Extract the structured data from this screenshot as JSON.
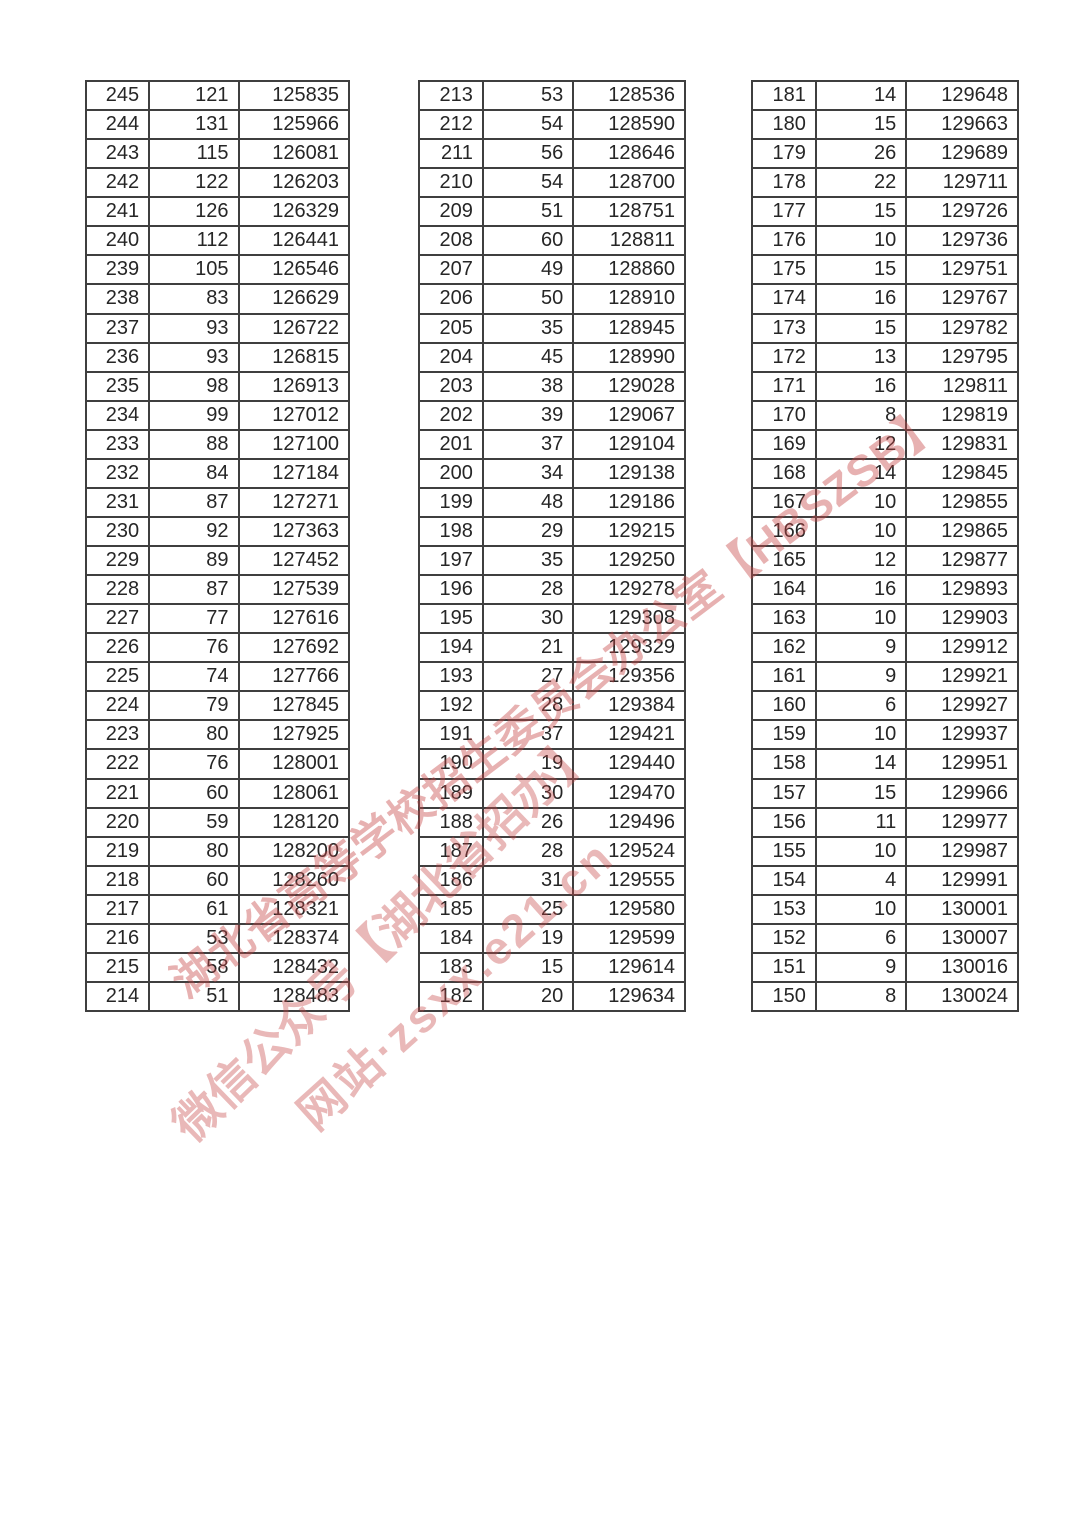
{
  "page": {
    "background": "#ffffff",
    "border_color": "#3f3f3f",
    "text_color": "#262626"
  },
  "watermark": {
    "color": "#c64444",
    "lines": [
      {
        "text": "湖北省高等学校招生委员会办公室【HBSZSB】"
      },
      {
        "text": "微信公众号【湖北省招办】"
      },
      {
        "text": "网站·zsxx.e21.cn"
      }
    ]
  },
  "tables": [
    {
      "rows": [
        [
          245,
          121,
          125835
        ],
        [
          244,
          131,
          125966
        ],
        [
          243,
          115,
          126081
        ],
        [
          242,
          122,
          126203
        ],
        [
          241,
          126,
          126329
        ],
        [
          240,
          112,
          126441
        ],
        [
          239,
          105,
          126546
        ],
        [
          238,
          83,
          126629
        ],
        [
          237,
          93,
          126722
        ],
        [
          236,
          93,
          126815
        ],
        [
          235,
          98,
          126913
        ],
        [
          234,
          99,
          127012
        ],
        [
          233,
          88,
          127100
        ],
        [
          232,
          84,
          127184
        ],
        [
          231,
          87,
          127271
        ],
        [
          230,
          92,
          127363
        ],
        [
          229,
          89,
          127452
        ],
        [
          228,
          87,
          127539
        ],
        [
          227,
          77,
          127616
        ],
        [
          226,
          76,
          127692
        ],
        [
          225,
          74,
          127766
        ],
        [
          224,
          79,
          127845
        ],
        [
          223,
          80,
          127925
        ],
        [
          222,
          76,
          128001
        ],
        [
          221,
          60,
          128061
        ],
        [
          220,
          59,
          128120
        ],
        [
          219,
          80,
          128200
        ],
        [
          218,
          60,
          128260
        ],
        [
          217,
          61,
          128321
        ],
        [
          216,
          53,
          128374
        ],
        [
          215,
          58,
          128432
        ],
        [
          214,
          51,
          128483
        ]
      ]
    },
    {
      "rows": [
        [
          213,
          53,
          128536
        ],
        [
          212,
          54,
          128590
        ],
        [
          211,
          56,
          128646
        ],
        [
          210,
          54,
          128700
        ],
        [
          209,
          51,
          128751
        ],
        [
          208,
          60,
          128811
        ],
        [
          207,
          49,
          128860
        ],
        [
          206,
          50,
          128910
        ],
        [
          205,
          35,
          128945
        ],
        [
          204,
          45,
          128990
        ],
        [
          203,
          38,
          129028
        ],
        [
          202,
          39,
          129067
        ],
        [
          201,
          37,
          129104
        ],
        [
          200,
          34,
          129138
        ],
        [
          199,
          48,
          129186
        ],
        [
          198,
          29,
          129215
        ],
        [
          197,
          35,
          129250
        ],
        [
          196,
          28,
          129278
        ],
        [
          195,
          30,
          129308
        ],
        [
          194,
          21,
          129329
        ],
        [
          193,
          27,
          129356
        ],
        [
          192,
          28,
          129384
        ],
        [
          191,
          37,
          129421
        ],
        [
          190,
          19,
          129440
        ],
        [
          189,
          30,
          129470
        ],
        [
          188,
          26,
          129496
        ],
        [
          187,
          28,
          129524
        ],
        [
          186,
          31,
          129555
        ],
        [
          185,
          25,
          129580
        ],
        [
          184,
          19,
          129599
        ],
        [
          183,
          15,
          129614
        ],
        [
          182,
          20,
          129634
        ]
      ]
    },
    {
      "rows": [
        [
          181,
          14,
          129648
        ],
        [
          180,
          15,
          129663
        ],
        [
          179,
          26,
          129689
        ],
        [
          178,
          22,
          129711
        ],
        [
          177,
          15,
          129726
        ],
        [
          176,
          10,
          129736
        ],
        [
          175,
          15,
          129751
        ],
        [
          174,
          16,
          129767
        ],
        [
          173,
          15,
          129782
        ],
        [
          172,
          13,
          129795
        ],
        [
          171,
          16,
          129811
        ],
        [
          170,
          8,
          129819
        ],
        [
          169,
          12,
          129831
        ],
        [
          168,
          14,
          129845
        ],
        [
          167,
          10,
          129855
        ],
        [
          166,
          10,
          129865
        ],
        [
          165,
          12,
          129877
        ],
        [
          164,
          16,
          129893
        ],
        [
          163,
          10,
          129903
        ],
        [
          162,
          9,
          129912
        ],
        [
          161,
          9,
          129921
        ],
        [
          160,
          6,
          129927
        ],
        [
          159,
          10,
          129937
        ],
        [
          158,
          14,
          129951
        ],
        [
          157,
          15,
          129966
        ],
        [
          156,
          11,
          129977
        ],
        [
          155,
          10,
          129987
        ],
        [
          154,
          4,
          129991
        ],
        [
          153,
          10,
          130001
        ],
        [
          152,
          6,
          130007
        ],
        [
          151,
          9,
          130016
        ],
        [
          150,
          8,
          130024
        ]
      ]
    }
  ]
}
